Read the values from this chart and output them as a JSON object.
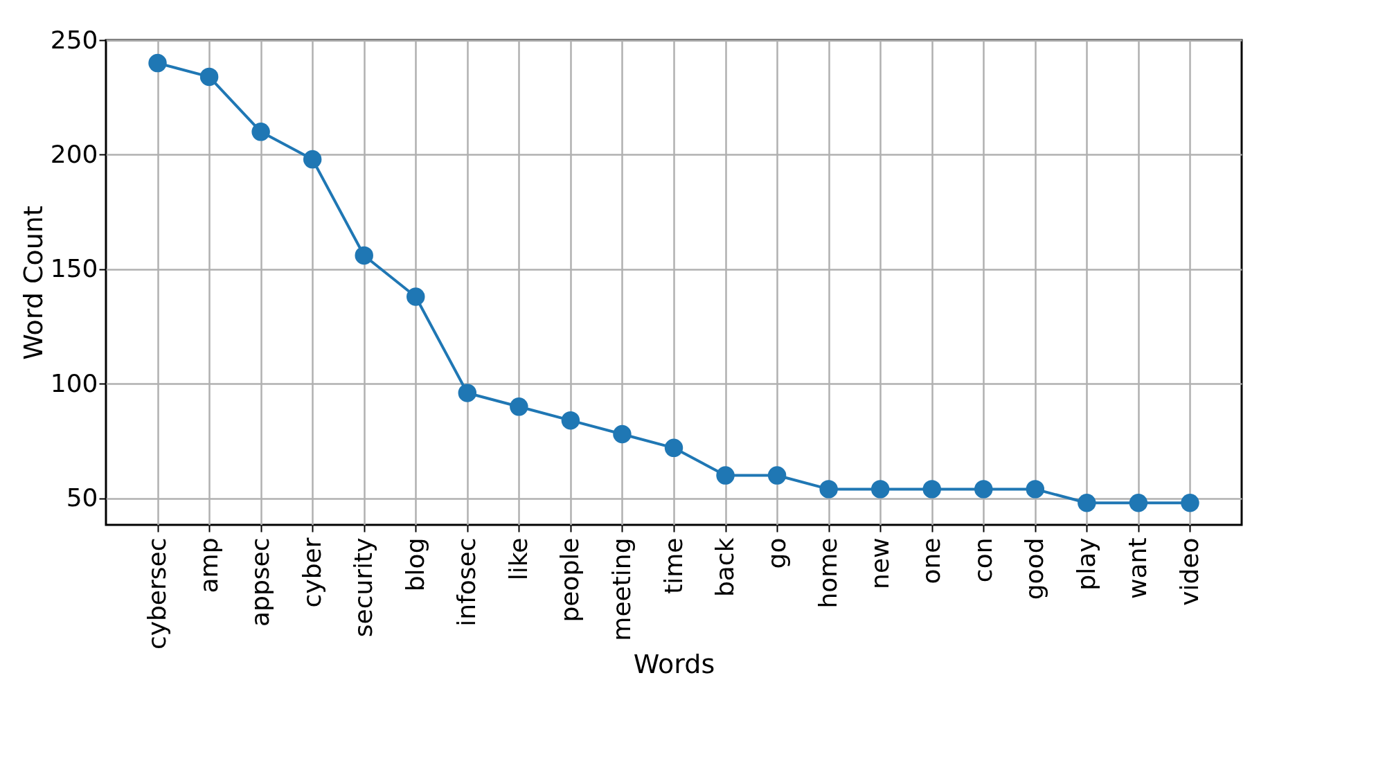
{
  "chart_data": {
    "type": "line",
    "xlabel": "Words",
    "ylabel": "Word Count",
    "categories": [
      "cybersec",
      "amp",
      "appsec",
      "cyber",
      "security",
      "blog",
      "infosec",
      "like",
      "people",
      "meeting",
      "time",
      "back",
      "go",
      "home",
      "new",
      "one",
      "con",
      "good",
      "play",
      "want",
      "video"
    ],
    "series": [
      {
        "color": "#1f77b4",
        "values": [
          240,
          234,
          210,
          198,
          156,
          138,
          96,
          90,
          84,
          78,
          72,
          60,
          60,
          54,
          54,
          54,
          54,
          54,
          48,
          48,
          48
        ]
      }
    ],
    "ylim": [
      38.4,
      250
    ],
    "yticks": [
      50,
      100,
      150,
      200,
      250
    ],
    "grid": true,
    "marker": "circle",
    "line_style": "solid"
  }
}
